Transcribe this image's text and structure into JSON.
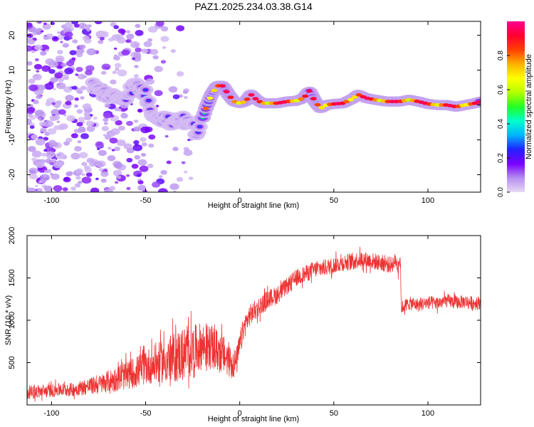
{
  "title": "PAZ1.2025.234.03.38.G14",
  "chart_data": [
    {
      "type": "heatmap",
      "title": "",
      "xlabel": "Height of straight line (km)",
      "ylabel": "Frequency (Hz)",
      "xlim": [
        -113,
        128
      ],
      "ylim": [
        -25,
        24
      ],
      "xticks": [
        -100,
        -50,
        0,
        50,
        100
      ],
      "yticks": [
        -20,
        -10,
        0,
        10,
        20
      ],
      "ridge": {
        "x": [
          -78,
          -75,
          -70,
          -65,
          -60,
          -55,
          -50,
          -47,
          -44,
          -40,
          -36,
          -32,
          -28,
          -25,
          -23,
          -21,
          -18,
          -15,
          -12,
          -9,
          -6,
          -3,
          0,
          3,
          6,
          9,
          12,
          15,
          20,
          25,
          30,
          34,
          37,
          40,
          43,
          46,
          50,
          55,
          60,
          63,
          67,
          72,
          78,
          85,
          90,
          95,
          100,
          105,
          110,
          115,
          120,
          125,
          128
        ],
        "y": [
          6,
          4,
          3,
          2,
          3,
          6,
          3,
          -2,
          -3,
          -4,
          -5,
          -4,
          -5,
          -6,
          -8,
          -6,
          -1,
          3,
          5.5,
          5.5,
          3,
          1,
          0.5,
          1,
          3,
          1.5,
          0.5,
          0.5,
          0.5,
          1,
          1.2,
          2,
          4,
          1,
          -1,
          0,
          0.3,
          0.5,
          1.8,
          3,
          2,
          1.5,
          1,
          1,
          1.5,
          1,
          0.3,
          0,
          0,
          -0.5,
          0,
          0.5,
          1
        ]
      },
      "scatter_region": {
        "x": [
          -113,
          -25
        ],
        "y": [
          -25,
          24
        ]
      },
      "colorbar": {
        "label": "Normalized spectral amplitude",
        "range": [
          0,
          1
        ],
        "ticks": [
          0.0,
          0.2,
          0.4,
          0.6,
          0.8
        ],
        "colors": [
          "#e8d9f5",
          "#b58ef0",
          "#7a00ff",
          "#2222ff",
          "#00b4ff",
          "#00ffcc",
          "#22ff22",
          "#b4ff00",
          "#ffff00",
          "#ffb000",
          "#ff4000",
          "#ff0030",
          "#ff0090"
        ]
      },
      "grid": false
    },
    {
      "type": "line",
      "title": "",
      "xlabel": "Height of straight line (km)",
      "ylabel": "SNR (10 * v/v)",
      "xlim": [
        -113,
        128
      ],
      "ylim": [
        0,
        2000
      ],
      "xticks": [
        -100,
        -50,
        0,
        50,
        100
      ],
      "yticks": [
        500,
        1000,
        1500,
        2000
      ],
      "color": "#ee3333",
      "series": [
        {
          "x": [
            -113,
            -105,
            -100,
            -95,
            -90,
            -85,
            -80,
            -75,
            -70,
            -65,
            -60,
            -55,
            -50,
            -45,
            -40,
            -35,
            -30,
            -25,
            -20,
            -15,
            -10,
            -5,
            -2,
            0,
            2,
            5,
            10,
            15,
            20,
            25,
            30,
            35,
            40,
            45,
            50,
            55,
            60,
            65,
            70,
            75,
            80,
            83,
            85,
            86,
            90,
            95,
            100,
            105,
            110,
            115,
            120,
            125,
            128
          ],
          "y": [
            150,
            160,
            170,
            180,
            180,
            200,
            220,
            240,
            280,
            310,
            350,
            390,
            450,
            480,
            520,
            560,
            600,
            640,
            700,
            680,
            620,
            520,
            480,
            700,
            900,
            1050,
            1150,
            1250,
            1300,
            1400,
            1500,
            1550,
            1600,
            1620,
            1650,
            1680,
            1700,
            1720,
            1700,
            1680,
            1650,
            1700,
            1600,
            1150,
            1200,
            1180,
            1210,
            1200,
            1230,
            1210,
            1220,
            1200,
            1210
          ],
          "noise": [
            80,
            80,
            80,
            80,
            80,
            90,
            100,
            110,
            130,
            150,
            170,
            190,
            210,
            230,
            260,
            300,
            330,
            300,
            280,
            260,
            240,
            200,
            180,
            150,
            140,
            130,
            120,
            110,
            110,
            100,
            100,
            100,
            100,
            100,
            100,
            100,
            100,
            100,
            100,
            100,
            100,
            100,
            100,
            80,
            80,
            80,
            80,
            80,
            80,
            80,
            80,
            80,
            80
          ]
        }
      ],
      "grid": false
    }
  ]
}
